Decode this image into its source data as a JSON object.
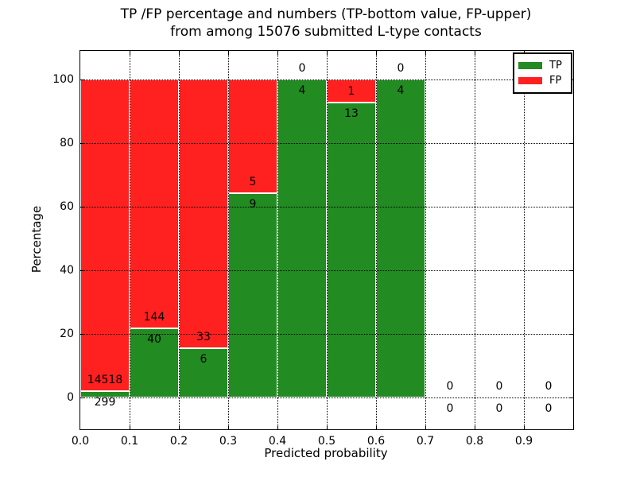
{
  "figure": {
    "title_line1": "TP /FP percentage and numbers (TP-bottom value, FP-upper)",
    "title_line2": "from among 15076 submitted L-type contacts",
    "xlabel": "Predicted probability",
    "ylabel": "Percentage"
  },
  "colors": {
    "tp": "#228B22",
    "fp": "#FF2020",
    "grid": "#000000",
    "frame": "#000000",
    "background": "#FFFFFF"
  },
  "legend": {
    "position": "upper right",
    "items": [
      {
        "label": "TP",
        "color_key": "tp"
      },
      {
        "label": "FP",
        "color_key": "fp"
      }
    ]
  },
  "chart_data": {
    "type": "bar",
    "stacked": true,
    "units": "percent_of_bin_total",
    "title": "TP /FP percentage and numbers (TP-bottom value, FP-upper) from among 15076 submitted L-type contacts",
    "xlabel": "Predicted probability",
    "ylabel": "Percentage",
    "total_contacts": 15076,
    "xlim": [
      0.0,
      1.0
    ],
    "ylim": [
      -10,
      110
    ],
    "bin_width": 0.1,
    "grid": true,
    "xticks": [
      "0.0",
      "0.1",
      "0.2",
      "0.3",
      "0.4",
      "0.5",
      "0.6",
      "0.7",
      "0.8",
      "0.9"
    ],
    "yticks": [
      0,
      20,
      40,
      60,
      80,
      100
    ],
    "categories": [
      "0.0-0.1",
      "0.1-0.2",
      "0.2-0.3",
      "0.3-0.4",
      "0.4-0.5",
      "0.5-0.6",
      "0.6-0.7",
      "0.7-0.8",
      "0.8-0.9",
      "0.9-1.0"
    ],
    "series": [
      {
        "name": "TP",
        "color_key": "tp",
        "counts": [
          299,
          40,
          6,
          9,
          4,
          13,
          4,
          0,
          0,
          0
        ],
        "percentages": [
          2.02,
          21.74,
          15.38,
          64.29,
          100,
          92.86,
          100,
          0,
          0,
          0
        ]
      },
      {
        "name": "FP",
        "color_key": "fp",
        "counts": [
          14518,
          144,
          33,
          5,
          0,
          1,
          0,
          0,
          0,
          0
        ],
        "percentages": [
          97.98,
          78.26,
          84.62,
          35.71,
          0,
          7.14,
          0,
          0,
          0,
          0
        ]
      }
    ]
  }
}
